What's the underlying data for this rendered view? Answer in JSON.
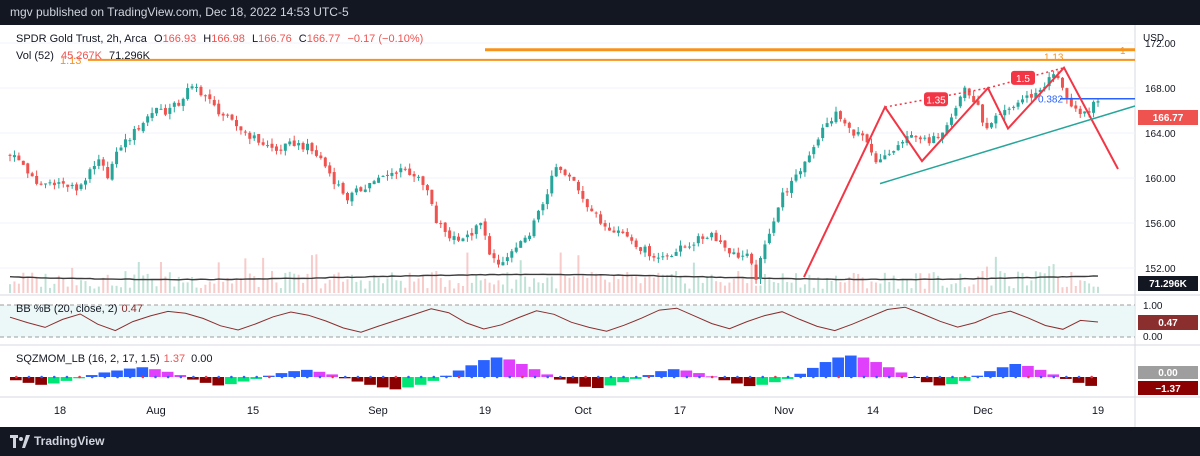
{
  "header": {
    "published": "mgv published on TradingView.com, Dec 18, 2022 14:53 UTC-5"
  },
  "footer": {
    "brand": "TradingView"
  },
  "legend": {
    "symbol": "SPDR Gold Trust, 2h, Arca",
    "o_label": "O",
    "o_value": "166.93",
    "h_label": "H",
    "h_value": "166.98",
    "l_label": "L",
    "l_value": "166.76",
    "c_label": "C",
    "c_value": "166.77",
    "change": "−0.17 (−0.10%)",
    "vol_label": "Vol (52)",
    "vol_value1": "45.267K",
    "vol_value2": "71.296K"
  },
  "colors": {
    "up": "#26a69a",
    "down": "#ef5350",
    "accent": "#f7931a",
    "blue": "#2962ff",
    "bb_line": "#8b2e2e",
    "macd_line": "#000000"
  },
  "chart_data": {
    "type": "candlestick",
    "price_axis": {
      "currency": "USD",
      "ticks": [
        "172.00",
        "168.00",
        "164.00",
        "160.00",
        "156.00",
        "152.00"
      ],
      "ylim": [
        149.6,
        173.6
      ]
    },
    "x_ticks": [
      "18",
      "Aug",
      "15",
      "Sep",
      "19",
      "Oct",
      "17",
      "Nov",
      "14",
      "Dec",
      "19"
    ],
    "last_price": "166.77",
    "volume_last": "71.296K",
    "close_path": [
      [
        0,
        162.2
      ],
      [
        3,
        161.2
      ],
      [
        6,
        159.3
      ],
      [
        10,
        159.7
      ],
      [
        15,
        159.0
      ],
      [
        20,
        161.4
      ],
      [
        22,
        160.3
      ],
      [
        25,
        162.9
      ],
      [
        27,
        163.6
      ],
      [
        30,
        165.0
      ],
      [
        33,
        166.3
      ],
      [
        35,
        165.9
      ],
      [
        38,
        166.6
      ],
      [
        40,
        167.8
      ],
      [
        42,
        168.0
      ],
      [
        44,
        167.3
      ],
      [
        46,
        166.3
      ],
      [
        50,
        164.9
      ],
      [
        55,
        163.5
      ],
      [
        60,
        162.4
      ],
      [
        64,
        163.1
      ],
      [
        67,
        162.7
      ],
      [
        70,
        161.7
      ],
      [
        73,
        159.8
      ],
      [
        76,
        158.2
      ],
      [
        79,
        159.0
      ],
      [
        82,
        159.8
      ],
      [
        85,
        160.1
      ],
      [
        88,
        160.9
      ],
      [
        91,
        160.3
      ],
      [
        94,
        158.8
      ],
      [
        96,
        156.1
      ],
      [
        99,
        154.8
      ],
      [
        103,
        154.7
      ],
      [
        106,
        155.9
      ],
      [
        108,
        153.5
      ],
      [
        110,
        152.0
      ],
      [
        113,
        153.4
      ],
      [
        116,
        154.4
      ],
      [
        119,
        156.8
      ],
      [
        121,
        158.8
      ],
      [
        123,
        160.9
      ],
      [
        125,
        160.2
      ],
      [
        127,
        159.7
      ],
      [
        130,
        157.7
      ],
      [
        133,
        156.0
      ],
      [
        136,
        155.5
      ],
      [
        139,
        154.9
      ],
      [
        142,
        153.8
      ],
      [
        146,
        152.9
      ],
      [
        150,
        153.5
      ],
      [
        155,
        154.5
      ],
      [
        158,
        155.1
      ],
      [
        161,
        153.9
      ],
      [
        163,
        153.2
      ],
      [
        166,
        153.0
      ],
      [
        168,
        151.2
      ],
      [
        171,
        155.3
      ],
      [
        174,
        158.5
      ],
      [
        177,
        160.0
      ],
      [
        180,
        162.2
      ],
      [
        183,
        164.3
      ],
      [
        186,
        165.7
      ],
      [
        189,
        164.3
      ],
      [
        192,
        163.7
      ],
      [
        195,
        161.2
      ],
      [
        198,
        162.1
      ],
      [
        201,
        163.2
      ],
      [
        204,
        163.9
      ],
      [
        207,
        163.0
      ],
      [
        210,
        164.3
      ],
      [
        213,
        166.4
      ],
      [
        215,
        168.0
      ],
      [
        218,
        166.2
      ],
      [
        220,
        164.2
      ],
      [
        222,
        165.2
      ],
      [
        225,
        166.1
      ],
      [
        228,
        167.0
      ],
      [
        231,
        167.5
      ],
      [
        233,
        168.3
      ],
      [
        235,
        169.2
      ],
      [
        237,
        168.2
      ],
      [
        239,
        166.3
      ],
      [
        241,
        165.4
      ],
      [
        243,
        166.1
      ],
      [
        245,
        166.77
      ]
    ],
    "volume_ma_label": "71.296K",
    "bb_percent_b": {
      "title": "BB %B (20, close, 2)",
      "value": "0.47",
      "axis_ticks": [
        "1.00",
        "0.00"
      ],
      "upper_band": 1.0,
      "lower_band": 0.0,
      "series": [
        0.62,
        0.45,
        0.3,
        0.55,
        0.72,
        0.4,
        0.2,
        0.48,
        0.66,
        0.8,
        0.74,
        0.58,
        0.35,
        0.22,
        0.41,
        0.63,
        0.78,
        0.68,
        0.5,
        0.28,
        0.15,
        0.34,
        0.52,
        0.7,
        0.88,
        0.76,
        0.44,
        0.25,
        0.38,
        0.61,
        0.82,
        0.71,
        0.46,
        0.3,
        0.18,
        0.37,
        0.59,
        0.84,
        0.9,
        0.66,
        0.42,
        0.26,
        0.48,
        0.67,
        0.79,
        0.55,
        0.33,
        0.2,
        0.4,
        0.63,
        0.86,
        0.93,
        0.72,
        0.49,
        0.31,
        0.45,
        0.68,
        0.81,
        0.6,
        0.36,
        0.24,
        0.52,
        0.47
      ]
    },
    "squeeze_momentum": {
      "title": "SQZMOM_LB (16, 2, 17, 1.5)",
      "value1": "1.37",
      "value2": "0.00",
      "axis_labels": [
        "0.00",
        "−1.37"
      ],
      "series": [
        -0.5,
        -0.9,
        -1.2,
        -1.0,
        -0.6,
        -0.2,
        0.3,
        0.7,
        1.0,
        1.3,
        1.5,
        1.2,
        0.8,
        0.3,
        -0.4,
        -0.9,
        -1.3,
        -1.1,
        -0.7,
        -0.3,
        0.2,
        0.6,
        0.9,
        1.1,
        0.8,
        0.4,
        -0.2,
        -0.7,
        -1.2,
        -1.6,
        -1.9,
        -1.6,
        -1.2,
        -0.6,
        0.2,
        1.0,
        1.8,
        2.6,
        3.0,
        2.7,
        2.0,
        1.2,
        0.4,
        -0.4,
        -1.0,
        -1.5,
        -1.7,
        -1.3,
        -0.8,
        -0.3,
        0.3,
        0.9,
        1.2,
        1.0,
        0.6,
        0.1,
        -0.5,
        -1.0,
        -1.4,
        -1.2,
        -0.8,
        -0.3,
        0.5,
        1.4,
        2.3,
        3.0,
        3.3,
        3.0,
        2.3,
        1.5,
        0.7,
        -0.1,
        -0.8,
        -1.3,
        -1.1,
        -0.6,
        0.2,
        0.9,
        1.5,
        2.0,
        1.7,
        1.1,
        0.4,
        -0.3,
        -0.9,
        -1.37
      ]
    },
    "annotations": {
      "fib_left_label": "1.13",
      "fib_right_label": "1",
      "fib_top_label": "1.13",
      "fib_382_label": "0.382",
      "ratio_labels": [
        "1.35",
        "1.5"
      ]
    }
  }
}
